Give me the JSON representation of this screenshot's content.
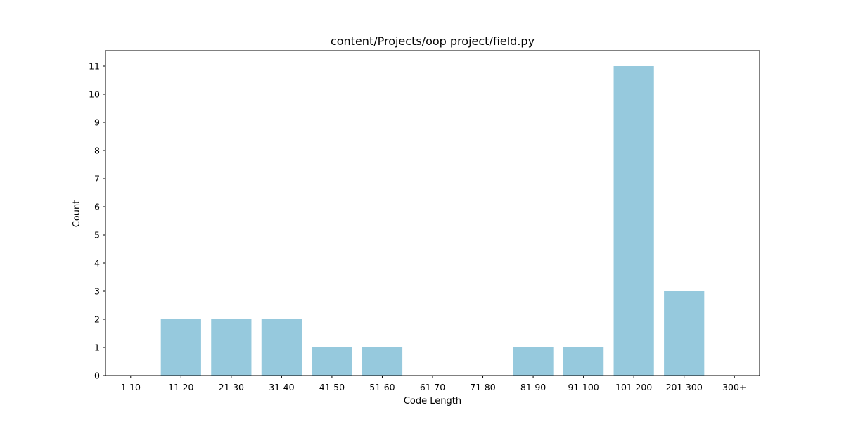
{
  "chart_data": {
    "type": "bar",
    "title": "content/Projects/oop project/field.py",
    "xlabel": "Code Length",
    "ylabel": "Count",
    "categories": [
      "1-10",
      "11-20",
      "21-30",
      "31-40",
      "41-50",
      "51-60",
      "61-70",
      "71-80",
      "81-90",
      "91-100",
      "101-200",
      "201-300",
      "300+"
    ],
    "values": [
      0,
      2,
      2,
      2,
      1,
      1,
      0,
      0,
      1,
      1,
      11,
      3,
      0
    ],
    "ylim": [
      0,
      11.55
    ],
    "yticks": [
      0,
      1,
      2,
      3,
      4,
      5,
      6,
      7,
      8,
      9,
      10,
      11
    ],
    "bar_color": "#96c9dd",
    "grid": false,
    "legend": "none"
  }
}
